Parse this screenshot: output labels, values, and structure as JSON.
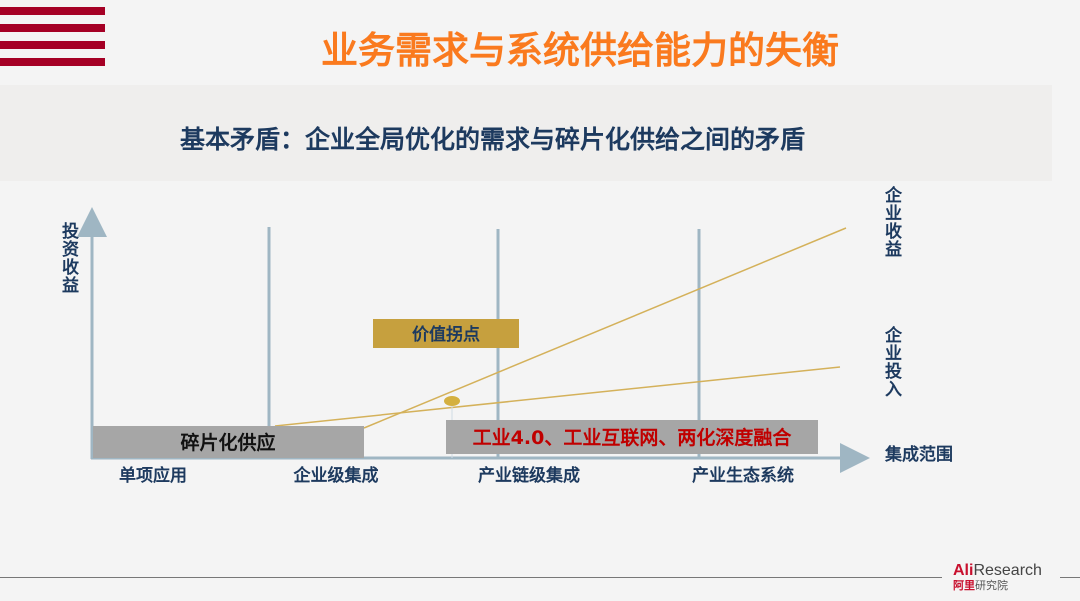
{
  "header": {
    "title": "业务需求与系统供给能力的失衡",
    "subtitle": "基本矛盾：企业全局优化的需求与碎片化供给之间的矛盾"
  },
  "diagram": {
    "y_axis_label": "投资收益",
    "x_axis_label": "集成范围",
    "stages": [
      "单项应用",
      "企业级集成",
      "产业链级集成",
      "产业生态系统"
    ],
    "line_labels": {
      "revenue": "企业收益",
      "investment": "企业投入"
    },
    "inflection_label": "价值拐点",
    "fragmented_label": "碎片化供应",
    "industry_label": "工业4.0、工业互联网、两化深度融合",
    "colors": {
      "axis": "#9fb6c3",
      "line": "#d4b15a",
      "gold_box": "#c6a03e",
      "grey_box": "#a6a6a6",
      "red_text": "#c00000"
    }
  },
  "footer": {
    "logo_en_a": "Ali",
    "logo_en_b": "Research",
    "logo_cn_a": "阿里",
    "logo_cn_b": "研究院"
  }
}
